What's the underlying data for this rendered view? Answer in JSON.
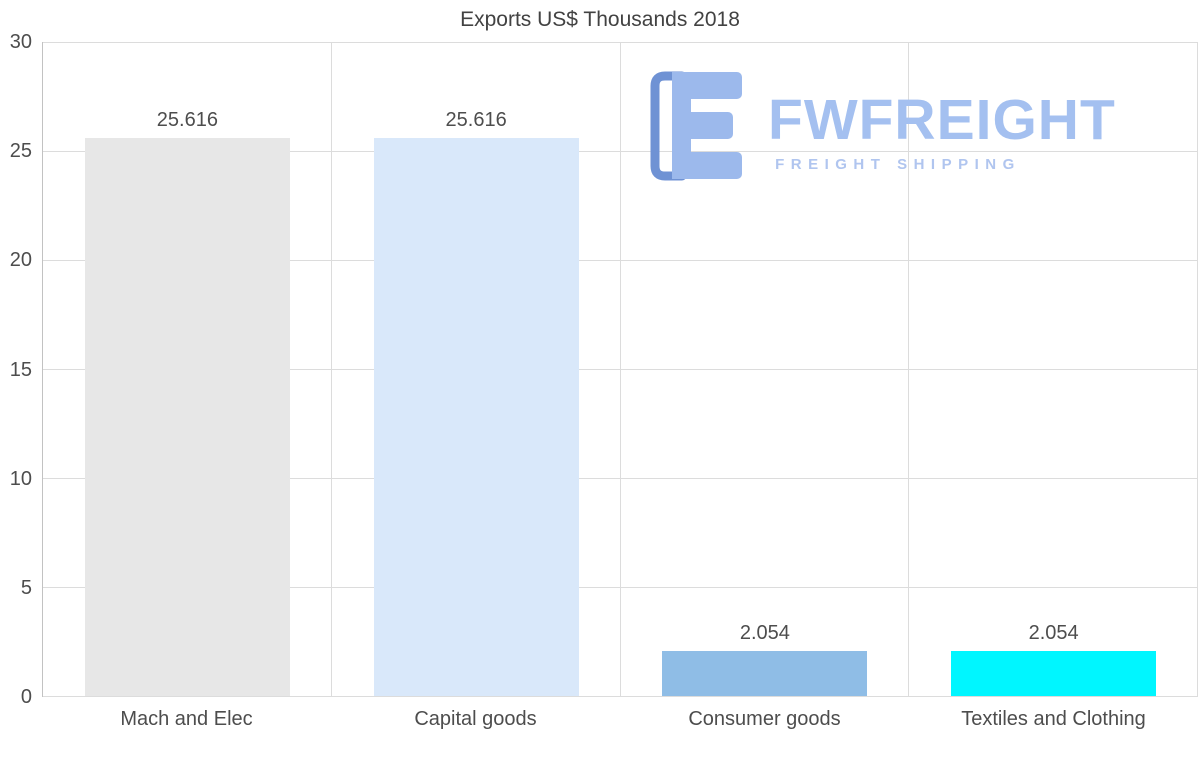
{
  "chart_data": {
    "type": "bar",
    "title": "Exports US$ Thousands 2018",
    "categories": [
      "Mach and Elec",
      "Capital goods",
      "Consumer goods",
      "Textiles and Clothing"
    ],
    "values": [
      25.616,
      25.616,
      2.054,
      2.054
    ],
    "value_labels": [
      "25.616",
      "25.616",
      "2.054",
      "2.054"
    ],
    "bar_colors": [
      "#e7e7e7",
      "#d9e8fa",
      "#8fbde6",
      "#00f6ff"
    ],
    "xlabel": "",
    "ylabel": "",
    "ylim": [
      0,
      30
    ],
    "yticks": [
      0,
      5,
      10,
      15,
      20,
      25,
      30
    ],
    "grid": true,
    "legend": false
  },
  "watermark": {
    "name": "FWFREIGHT",
    "subtitle": "FREIGHT SHIPPING",
    "text_color": "#a4c0f0",
    "subtitle_color": "#b0c5ef",
    "icon_fill": "#9cb9ec",
    "icon_stroke": "#6f92d4"
  }
}
